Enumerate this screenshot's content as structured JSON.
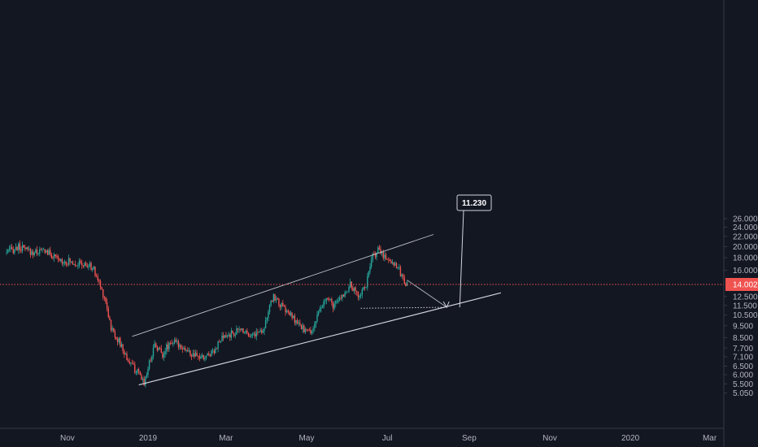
{
  "chart_data": {
    "type": "candlestick",
    "scale": "log",
    "grid": false,
    "colors": {
      "background": "#131722",
      "up": "#26a69a",
      "down": "#ef5350",
      "axis_text": "#b2b5be",
      "axis_line": "#363a45",
      "trendline": "#d1d4dc",
      "price_line": "#ef5350",
      "price_badge": "#ef5350"
    },
    "y_ticks": [
      "26.000",
      "24.000",
      "22.000",
      "20.000",
      "18.000",
      "16.000",
      "12.500",
      "11.500",
      "10.500",
      "9.500",
      "8.500",
      "7.700",
      "7.100",
      "6.500",
      "6.000",
      "5.500",
      "5.050"
    ],
    "x_ticks": [
      "Nov",
      "2019",
      "Mar",
      "May",
      "Jul",
      "Sep",
      "Nov",
      "2020",
      "Mar"
    ],
    "current_price": {
      "value": "14.002"
    },
    "target_label": {
      "value": "11.230"
    },
    "price_path": [
      [
        "2018-09-15",
        18.8
      ],
      [
        "2018-09-25",
        19.9
      ],
      [
        "2018-10-05",
        18.9
      ],
      [
        "2018-10-15",
        19.3
      ],
      [
        "2018-10-25",
        17.6
      ],
      [
        "2018-11-05",
        17.3
      ],
      [
        "2018-11-10",
        17.0
      ],
      [
        "2018-11-20",
        16.5
      ],
      [
        "2018-11-25",
        14.2
      ],
      [
        "2018-11-30",
        12.0
      ],
      [
        "2018-12-04",
        9.3
      ],
      [
        "2018-12-10",
        8.2
      ],
      [
        "2018-12-16",
        7.0
      ],
      [
        "2018-12-24",
        6.1
      ],
      [
        "2018-12-29",
        5.6
      ],
      [
        "2019-01-02",
        6.7
      ],
      [
        "2019-01-06",
        8.0
      ],
      [
        "2019-01-12",
        7.3
      ],
      [
        "2019-01-18",
        8.2
      ],
      [
        "2019-01-26",
        7.9
      ],
      [
        "2019-02-03",
        7.2
      ],
      [
        "2019-02-12",
        7.0
      ],
      [
        "2019-02-20",
        7.6
      ],
      [
        "2019-02-26",
        8.4
      ],
      [
        "2019-03-05",
        8.8
      ],
      [
        "2019-03-13",
        9.2
      ],
      [
        "2019-03-21",
        8.7
      ],
      [
        "2019-03-29",
        9.2
      ],
      [
        "2019-04-06",
        12.6
      ],
      [
        "2019-04-12",
        11.4
      ],
      [
        "2019-04-18",
        10.6
      ],
      [
        "2019-04-26",
        9.4
      ],
      [
        "2019-05-04",
        8.9
      ],
      [
        "2019-05-10",
        10.6
      ],
      [
        "2019-05-16",
        12.3
      ],
      [
        "2019-05-22",
        11.4
      ],
      [
        "2019-05-28",
        12.6
      ],
      [
        "2019-06-03",
        13.9
      ],
      [
        "2019-06-09",
        12.6
      ],
      [
        "2019-06-15",
        14.0
      ],
      [
        "2019-06-20",
        18.2
      ],
      [
        "2019-06-24",
        19.3
      ],
      [
        "2019-06-28",
        18.5
      ],
      [
        "2019-07-03",
        17.5
      ],
      [
        "2019-07-08",
        16.9
      ],
      [
        "2019-07-12",
        15.1
      ],
      [
        "2019-07-16",
        14.0
      ]
    ],
    "channel_upper": {
      "start": [
        "2018-12-20",
        8.6
      ],
      "end": [
        "2019-08-05",
        22.4
      ]
    },
    "channel_lower": {
      "start": [
        "2018-12-25",
        5.45
      ],
      "end": [
        "2019-09-25",
        12.95
      ]
    },
    "projection": {
      "from": [
        "2019-07-16",
        14.6
      ],
      "to": [
        "2019-08-15",
        11.3
      ],
      "support_from": [
        "2019-06-11",
        11.2
      ]
    }
  }
}
